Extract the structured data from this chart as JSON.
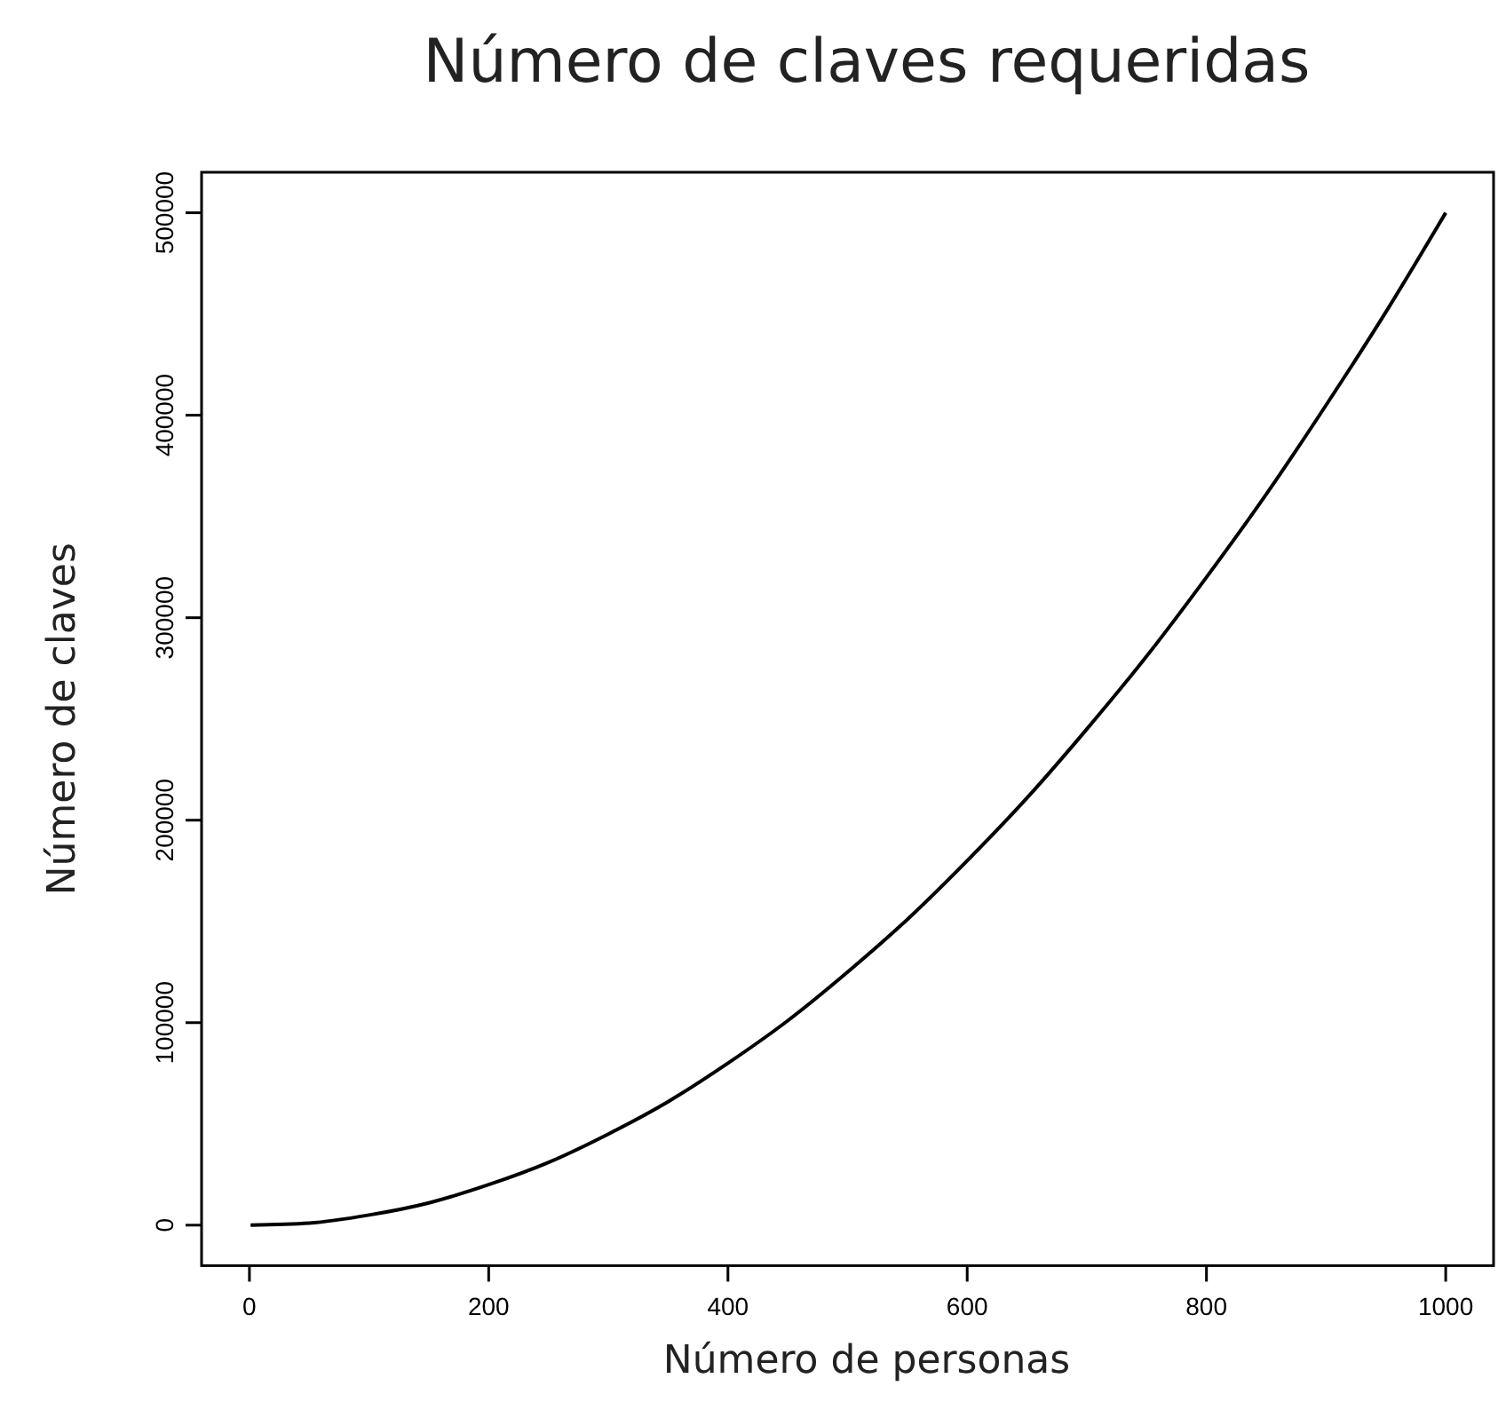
{
  "chart_data": {
    "type": "line",
    "title": "Número de claves requeridas",
    "xlabel": "Número de personas",
    "ylabel": "Número de claves",
    "x": [
      1,
      50,
      100,
      150,
      200,
      250,
      300,
      350,
      400,
      450,
      500,
      550,
      600,
      650,
      700,
      750,
      800,
      850,
      900,
      950,
      1000
    ],
    "series": [
      {
        "color": "#000000",
        "values": [
          0,
          1000,
          5000,
          11000,
          20000,
          31000,
          45000,
          61000,
          80000,
          101000,
          125000,
          151000,
          180000,
          211000,
          245000,
          281000,
          320000,
          361000,
          405000,
          451000,
          500000
        ]
      }
    ],
    "xlim": [
      -40,
      1040
    ],
    "ylim": [
      -20000,
      520000
    ],
    "xticks": [
      0,
      200,
      400,
      600,
      800,
      1000
    ],
    "yticks": [
      0,
      100000,
      200000,
      300000,
      400000,
      500000
    ],
    "grid": false,
    "marker": "none",
    "line_style": "solid"
  }
}
